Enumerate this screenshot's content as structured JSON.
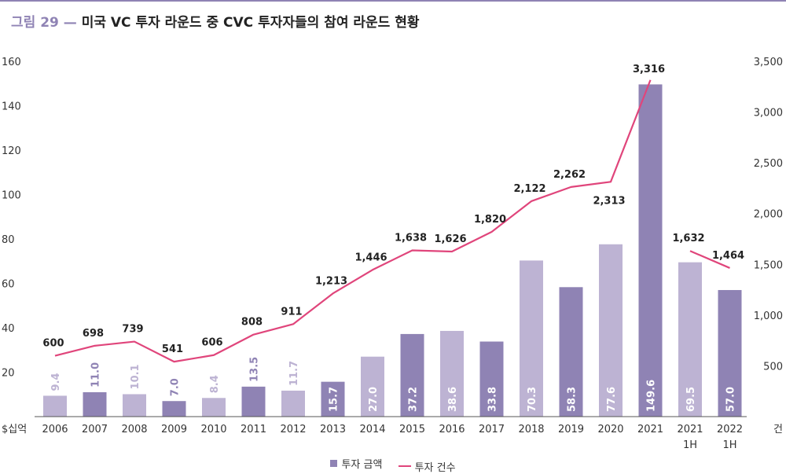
{
  "title": {
    "figure": "그림 29",
    "dash": "—",
    "text": "미국 VC 투자 라운드 중 CVC 투자자들의 참여 라운드 현황"
  },
  "colors": {
    "bar_dark": "#8f83b4",
    "bar_light": "#bdb3d3",
    "line": "#e0457b",
    "title_accent": "#8f83b4"
  },
  "chart_data": {
    "type": "bar",
    "categories": [
      "2006",
      "2007",
      "2008",
      "2009",
      "2010",
      "2011",
      "2012",
      "2013",
      "2014",
      "2015",
      "2016",
      "2017",
      "2018",
      "2019",
      "2020",
      "2021",
      "2021\n1H",
      "2022\n1H"
    ],
    "series": [
      {
        "name": "투자 금액",
        "type": "bar",
        "axis": "left",
        "values": [
          9.4,
          11.0,
          10.1,
          7.0,
          8.4,
          13.5,
          11.7,
          15.7,
          27.0,
          37.2,
          38.6,
          33.8,
          70.3,
          58.3,
          77.6,
          149.6,
          69.5,
          57.0
        ],
        "labels": [
          "9.4",
          "11.0",
          "10.1",
          "7.0",
          "8.4",
          "13.5",
          "11.7",
          "15.7",
          "27.0",
          "37.2",
          "38.6",
          "33.8",
          "70.3",
          "58.3",
          "77.6",
          "149.6",
          "69.5",
          "57.0"
        ],
        "shade": [
          "light",
          "dark",
          "light",
          "dark",
          "light",
          "dark",
          "light",
          "dark",
          "light",
          "dark",
          "light",
          "dark",
          "light",
          "dark",
          "light",
          "dark",
          "light",
          "dark"
        ]
      },
      {
        "name": "투자 건수",
        "type": "line",
        "axis": "right",
        "values": [
          600,
          698,
          739,
          541,
          606,
          808,
          911,
          1213,
          1446,
          1638,
          1626,
          1820,
          2122,
          2262,
          2313,
          3316,
          1632,
          1464
        ],
        "labels": [
          "600",
          "698",
          "739",
          "541",
          "606",
          "808",
          "911",
          "1,213",
          "1,446",
          "1,638",
          "1,626",
          "1,820",
          "2,122",
          "2,262",
          "2,313",
          "3,316",
          "1,632",
          "1,464"
        ],
        "segments": [
          [
            0,
            15
          ],
          [
            16,
            17
          ]
        ]
      }
    ],
    "left_axis": {
      "unit": "$십억",
      "ylim": [
        0,
        160
      ],
      "ticks": [
        20,
        40,
        60,
        80,
        100,
        120,
        140,
        160
      ]
    },
    "right_axis": {
      "unit": "건",
      "ylim": [
        0,
        3500
      ],
      "ticks": [
        "500",
        "1,000",
        "1,500",
        "2,000",
        "2,500",
        "3,000",
        "3,500"
      ],
      "tick_values": [
        500,
        1000,
        1500,
        2000,
        2500,
        3000,
        3500
      ]
    },
    "legend": {
      "position": "bottom",
      "items": [
        "투자 금액",
        "투자 건수"
      ]
    }
  }
}
